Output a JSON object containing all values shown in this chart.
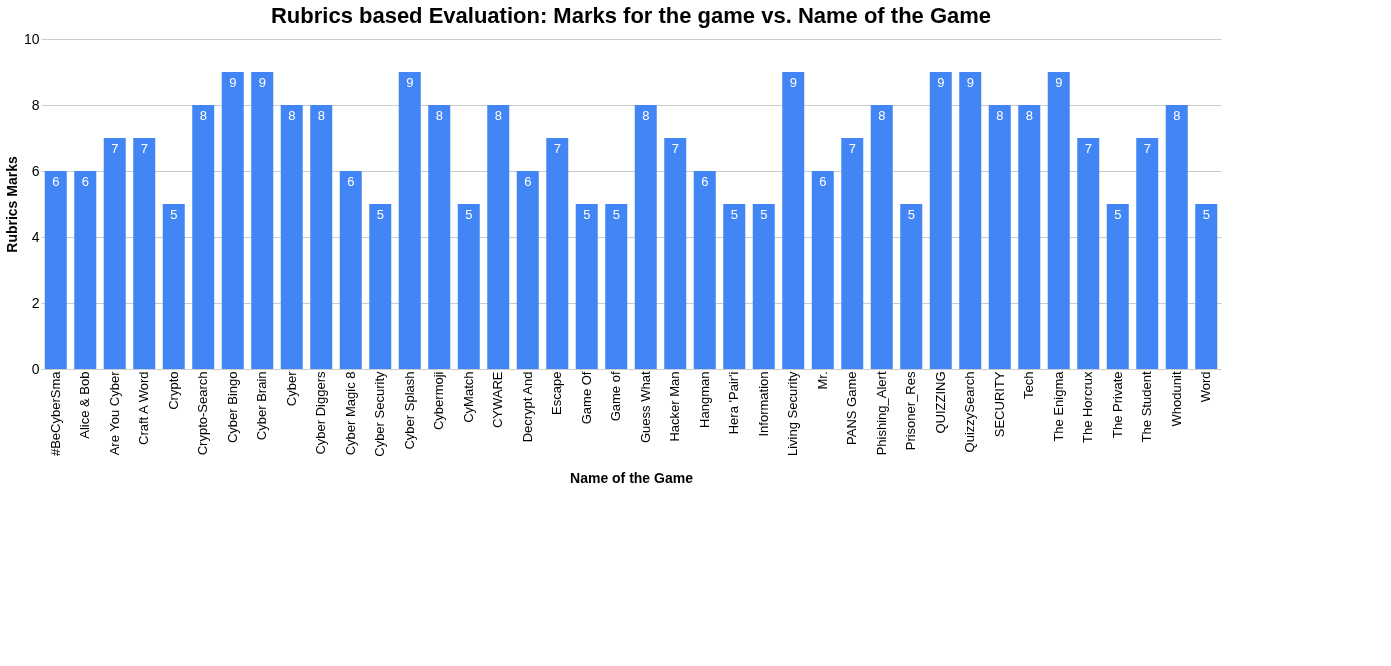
{
  "chart_data": {
    "type": "bar",
    "title": "Rubrics based Evaluation: Marks for the game  vs. Name of the Game",
    "xlabel": "Name of the Game",
    "ylabel": "Rubrics Marks",
    "categories": [
      "#BeCyberSma",
      "Alice & Bob",
      "Are You Cyber",
      "Craft A Word",
      "Crypto",
      "Crypto-Search",
      "Cyber Bingo",
      "Cyber Brain",
      "Cyber",
      "Cyber Diggers",
      "Cyber Magic 8",
      "Cyber Security",
      "Cyber Splash",
      "Cybermoji",
      "CyMatch",
      "CYWARE",
      "Decrypt And",
      "Escape",
      "Game Of",
      "Game of",
      "Guess What",
      "Hacker Man",
      "Hangman",
      "Hera 'Pair'i",
      "Information",
      "Living Security",
      "Mr.",
      "PANS Game",
      "Phishing_Alert",
      "Prisoner_Res",
      "QUIZZING",
      "QuizzySearch",
      "SECURITY",
      "Tech",
      "The Enigma",
      "The Horcrux",
      "The Private",
      "The Student",
      "Whodunit",
      "Word"
    ],
    "values": [
      6,
      6,
      7,
      7,
      5,
      8,
      9,
      9,
      8,
      8,
      6,
      5,
      9,
      8,
      5,
      8,
      6,
      7,
      5,
      5,
      8,
      7,
      6,
      5,
      5,
      9,
      6,
      7,
      8,
      5,
      9,
      9,
      8,
      8,
      9,
      7,
      5,
      7,
      8,
      5
    ],
    "color": "#4285f4",
    "ylim": [
      0,
      10
    ],
    "yticks": [
      0,
      2,
      4,
      6,
      8,
      10
    ],
    "grid": "y",
    "data_labels": true
  }
}
